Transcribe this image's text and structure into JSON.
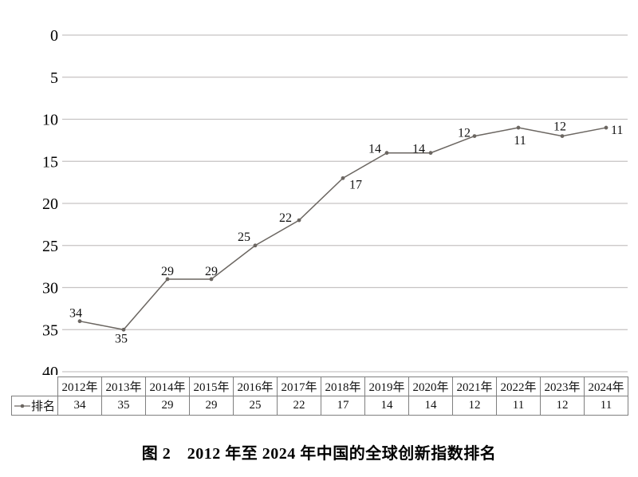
{
  "figure": {
    "caption": "图 2　2012 年至 2024 年中国的全球创新指数排名"
  },
  "chart_data": {
    "type": "line",
    "title": "图 2　2012 年至 2024 年中国的全球创新指数排名",
    "categories": [
      "2012年",
      "2013年",
      "2014年",
      "2015年",
      "2016年",
      "2017年",
      "2018年",
      "2019年",
      "2020年",
      "2021年",
      "2022年",
      "2023年",
      "2024年"
    ],
    "series": [
      {
        "name": "排名",
        "values": [
          34,
          35,
          29,
          29,
          25,
          22,
          17,
          14,
          14,
          12,
          11,
          12,
          11
        ]
      }
    ],
    "xlabel": "",
    "ylabel": "",
    "ylim": [
      0,
      40
    ],
    "y_ticks": [
      0,
      5,
      10,
      15,
      20,
      25,
      30,
      35,
      40
    ],
    "axis_inverted": true,
    "grid": true,
    "data_labels": true,
    "legend_position": "table-row-left",
    "label_offsets": [
      [
        -5,
        -5,
        "middle"
      ],
      [
        -3,
        16,
        "middle"
      ],
      [
        0,
        -5,
        "middle"
      ],
      [
        0,
        -5,
        "middle"
      ],
      [
        -14,
        -6,
        "middle"
      ],
      [
        -17,
        2,
        "middle"
      ],
      [
        8,
        13,
        "start"
      ],
      [
        -7,
        0,
        "end"
      ],
      [
        -7,
        0,
        "end"
      ],
      [
        -5,
        1,
        "end"
      ],
      [
        2,
        21,
        "middle"
      ],
      [
        -3,
        -7,
        "middle"
      ],
      [
        6,
        8,
        "start"
      ]
    ],
    "style": {
      "line_color": "#6b6661",
      "marker_color": "#6b6661",
      "grid_color": "#c6c3c3",
      "table_border_color": "#7f7f7f",
      "text_color": "#111111"
    }
  }
}
